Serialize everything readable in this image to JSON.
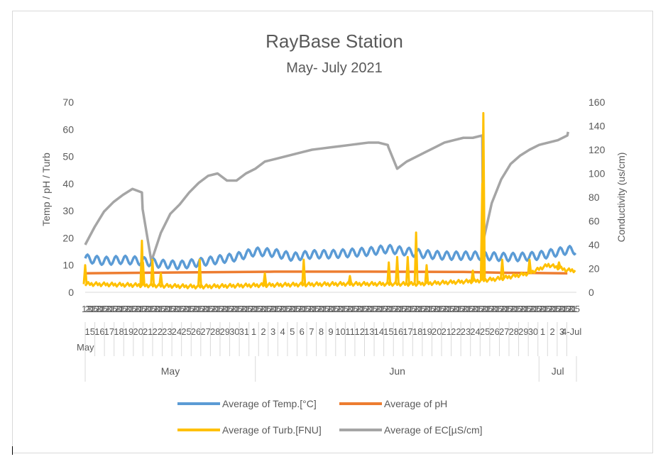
{
  "chart_data": {
    "type": "line",
    "title": "RayBase Station",
    "subtitle": "May- July 2021",
    "ylabel_left": "Temp / pH / Turb",
    "ylabel_right": "Conductivity (us/cm)",
    "ylim_left": [
      0,
      70
    ],
    "ylim_right": [
      0,
      160
    ],
    "yticks_left": [
      "0",
      "10",
      "20",
      "30",
      "40",
      "50",
      "60",
      "70"
    ],
    "yticks_right": [
      "0",
      "20",
      "40",
      "60",
      "80",
      "100",
      "120",
      "140",
      "160"
    ],
    "x_start_date": "2021-05-14",
    "x_end_date": "2021-07-04",
    "hour_tick_labels": [
      "13",
      "21",
      "05"
    ],
    "day_tick_labels": [
      "15",
      "16",
      "17",
      "18",
      "19",
      "20",
      "21",
      "22",
      "23",
      "24",
      "25",
      "26",
      "27",
      "28",
      "29",
      "30",
      "31",
      "1",
      "2",
      "3",
      "4",
      "5",
      "6",
      "7",
      "8",
      "9",
      "10",
      "11",
      "12",
      "13",
      "14",
      "15",
      "16",
      "17",
      "18",
      "19",
      "20",
      "21",
      "22",
      "23",
      "24",
      "25",
      "26",
      "27",
      "28",
      "29",
      "30",
      "1",
      "2",
      "3",
      "4-Jul"
    ],
    "first_day_label": "May",
    "month_labels": [
      {
        "label": "May",
        "start": "2021-05-14",
        "end": "2021-05-31"
      },
      {
        "label": "Jun",
        "start": "2021-06-01",
        "end": "2021-06-30"
      },
      {
        "label": "Jul",
        "start": "2021-07-01",
        "end": "2021-07-04"
      }
    ],
    "grid": false,
    "legend_position": "bottom",
    "series": [
      {
        "name": "Average of Temp.[°C]",
        "axis": "left",
        "color": "#5b9bd5",
        "points": [
          [
            "2021-05-14",
            12.5
          ],
          [
            "2021-05-16",
            11.5
          ],
          [
            "2021-05-18",
            12.0
          ],
          [
            "2021-05-20",
            11.5
          ],
          [
            "2021-05-22",
            10.5
          ],
          [
            "2021-05-24",
            10.0
          ],
          [
            "2021-05-26",
            11.0
          ],
          [
            "2021-05-28",
            12.0
          ],
          [
            "2021-05-30",
            13.0
          ],
          [
            "2021-06-01",
            15.0
          ],
          [
            "2021-06-03",
            14.5
          ],
          [
            "2021-06-05",
            13.0
          ],
          [
            "2021-06-07",
            14.0
          ],
          [
            "2021-06-09",
            14.0
          ],
          [
            "2021-06-11",
            14.5
          ],
          [
            "2021-06-13",
            15.0
          ],
          [
            "2021-06-15",
            16.0
          ],
          [
            "2021-06-17",
            15.0
          ],
          [
            "2021-06-19",
            14.0
          ],
          [
            "2021-06-21",
            13.5
          ],
          [
            "2021-06-23",
            13.5
          ],
          [
            "2021-06-25",
            13.5
          ],
          [
            "2021-06-27",
            13.0
          ],
          [
            "2021-06-29",
            13.0
          ],
          [
            "2021-07-01",
            13.5
          ],
          [
            "2021-07-04",
            15.5
          ]
        ],
        "diurnal_amplitude": 1.5
      },
      {
        "name": "Average of pH",
        "axis": "left",
        "color": "#ed7d31",
        "points": [
          [
            "2021-05-14",
            7.0
          ],
          [
            "2021-05-24",
            7.3
          ],
          [
            "2021-06-03",
            7.6
          ],
          [
            "2021-06-13",
            7.6
          ],
          [
            "2021-06-23",
            7.5
          ],
          [
            "2021-06-27",
            7.2
          ],
          [
            "2021-07-04",
            7.0
          ]
        ]
      },
      {
        "name": "Average of Turb.[FNU]",
        "axis": "left",
        "color": "#ffc000",
        "baseline_points": [
          [
            "2021-05-14",
            3.0
          ],
          [
            "2021-05-20",
            2.5
          ],
          [
            "2021-05-26",
            2.0
          ],
          [
            "2021-06-01",
            2.5
          ],
          [
            "2021-06-10",
            3.0
          ],
          [
            "2021-06-18",
            3.0
          ],
          [
            "2021-06-24",
            4.0
          ],
          [
            "2021-06-27",
            5.0
          ],
          [
            "2021-06-30",
            7.0
          ],
          [
            "2021-07-02",
            10.0
          ],
          [
            "2021-07-04",
            8.0
          ]
        ],
        "spikes": [
          [
            "2021-05-14",
            10
          ],
          [
            "2021-05-20",
            11
          ],
          [
            "2021-05-20",
            19
          ],
          [
            "2021-05-21",
            12
          ],
          [
            "2021-05-22",
            7
          ],
          [
            "2021-05-26",
            12
          ],
          [
            "2021-06-02",
            7
          ],
          [
            "2021-06-06",
            12
          ],
          [
            "2021-06-11",
            6
          ],
          [
            "2021-06-15",
            11
          ],
          [
            "2021-06-16",
            13
          ],
          [
            "2021-06-17",
            13
          ],
          [
            "2021-06-18",
            22
          ],
          [
            "2021-06-19",
            10
          ],
          [
            "2021-06-24",
            8
          ],
          [
            "2021-06-25",
            66
          ],
          [
            "2021-06-25",
            40
          ],
          [
            "2021-06-27",
            12
          ],
          [
            "2021-06-30",
            12
          ],
          [
            "2021-07-03",
            11
          ]
        ]
      },
      {
        "name": "Average of EC[µS/cm]",
        "axis": "right",
        "color": "#a5a5a5",
        "points": [
          [
            "2021-05-14",
            40
          ],
          [
            "2021-05-15",
            55
          ],
          [
            "2021-05-16",
            68
          ],
          [
            "2021-05-17",
            76
          ],
          [
            "2021-05-18",
            82
          ],
          [
            "2021-05-19",
            87
          ],
          [
            "2021-05-20",
            84
          ],
          [
            "2021-05-20",
            70
          ],
          [
            "2021-05-21",
            26
          ],
          [
            "2021-05-22",
            50
          ],
          [
            "2021-05-23",
            66
          ],
          [
            "2021-05-24",
            74
          ],
          [
            "2021-05-25",
            84
          ],
          [
            "2021-05-26",
            92
          ],
          [
            "2021-05-27",
            98
          ],
          [
            "2021-05-28",
            100
          ],
          [
            "2021-05-29",
            94
          ],
          [
            "2021-05-30",
            94
          ],
          [
            "2021-05-31",
            100
          ],
          [
            "2021-06-01",
            104
          ],
          [
            "2021-06-02",
            110
          ],
          [
            "2021-06-03",
            112
          ],
          [
            "2021-06-04",
            114
          ],
          [
            "2021-06-05",
            116
          ],
          [
            "2021-06-06",
            118
          ],
          [
            "2021-06-07",
            120
          ],
          [
            "2021-06-08",
            121
          ],
          [
            "2021-06-09",
            122
          ],
          [
            "2021-06-10",
            123
          ],
          [
            "2021-06-11",
            124
          ],
          [
            "2021-06-12",
            125
          ],
          [
            "2021-06-13",
            126
          ],
          [
            "2021-06-14",
            126
          ],
          [
            "2021-06-15",
            124
          ],
          [
            "2021-06-15",
            122
          ],
          [
            "2021-06-16",
            104
          ],
          [
            "2021-06-17",
            110
          ],
          [
            "2021-06-18",
            114
          ],
          [
            "2021-06-19",
            118
          ],
          [
            "2021-06-20",
            122
          ],
          [
            "2021-06-21",
            126
          ],
          [
            "2021-06-22",
            128
          ],
          [
            "2021-06-23",
            130
          ],
          [
            "2021-06-24",
            130
          ],
          [
            "2021-06-25",
            132
          ],
          [
            "2021-06-25",
            42
          ],
          [
            "2021-06-26",
            75
          ],
          [
            "2021-06-27",
            95
          ],
          [
            "2021-06-28",
            108
          ],
          [
            "2021-06-29",
            115
          ],
          [
            "2021-06-30",
            120
          ],
          [
            "2021-07-01",
            124
          ],
          [
            "2021-07-02",
            126
          ],
          [
            "2021-07-03",
            128
          ],
          [
            "2021-07-04",
            132
          ],
          [
            "2021-07-04",
            135
          ]
        ]
      }
    ]
  }
}
